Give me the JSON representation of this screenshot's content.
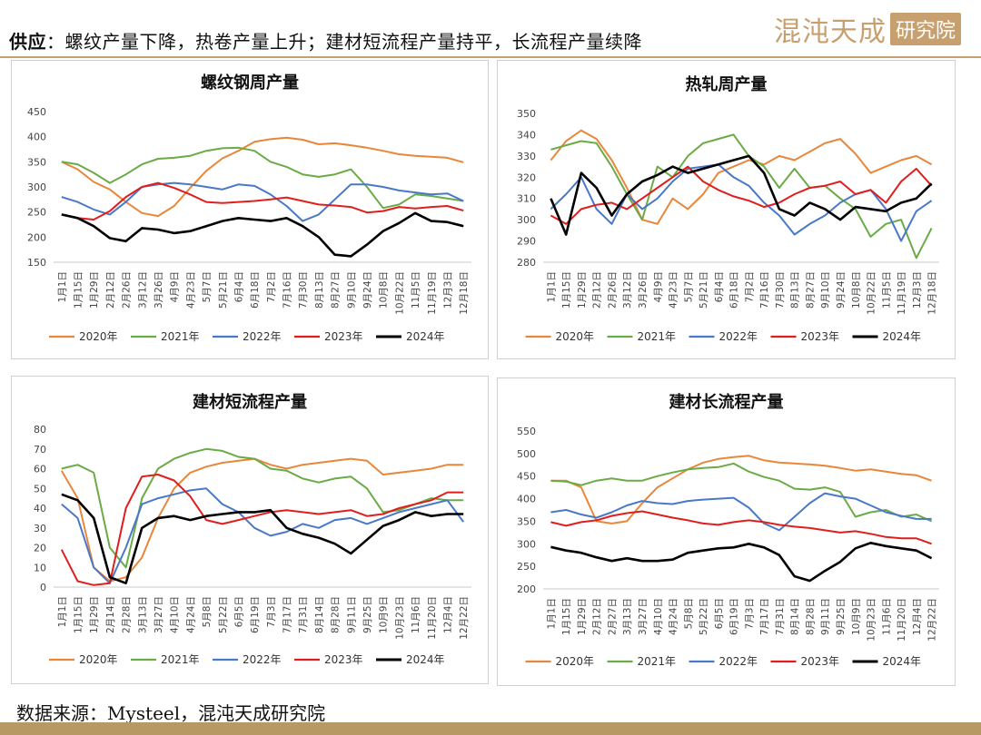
{
  "header": {
    "lead": "供应",
    "title": "：螺纹产量下降，热卷产量上升；建材短流程产量持平，长流程产量续降",
    "logo": "混沌天成",
    "logo_box": "研究院"
  },
  "footer": {
    "source": "数据来源：Mysteel，混沌天成研究院"
  },
  "legend_names": [
    "2020年",
    "2021年",
    "2022年",
    "2023年",
    "2024年"
  ],
  "colors": [
    "#e8873a",
    "#6aab46",
    "#4a78c8",
    "#e01e1e",
    "#000000"
  ],
  "chart_data": [
    {
      "type": "line",
      "title": "螺纹钢周产量",
      "ylim": [
        150,
        450
      ],
      "yticks": [
        150,
        200,
        250,
        300,
        350,
        400,
        450
      ],
      "x": [
        "1月1日",
        "1月15日",
        "1月29日",
        "2月12日",
        "2月26日",
        "3月12日",
        "3月26日",
        "4月9日",
        "4月23日",
        "5月7日",
        "5月21日",
        "6月4日",
        "6月18日",
        "7月2日",
        "7月16日",
        "7月30日",
        "8月13日",
        "8月27日",
        "9月10日",
        "9月24日",
        "10月8日",
        "10月22日",
        "11月5日",
        "11月19日",
        "12月3日",
        "12月18日"
      ],
      "series": [
        {
          "name": "2020年",
          "values": [
            350,
            335,
            310,
            295,
            270,
            248,
            242,
            262,
            298,
            332,
            357,
            372,
            390,
            395,
            398,
            394,
            385,
            387,
            383,
            378,
            372,
            365,
            362,
            360,
            358,
            349
          ]
        },
        {
          "name": "2021年",
          "values": [
            350,
            345,
            328,
            308,
            325,
            345,
            356,
            358,
            362,
            372,
            377,
            378,
            372,
            350,
            340,
            325,
            320,
            325,
            335,
            300,
            258,
            265,
            285,
            282,
            277,
            272
          ]
        },
        {
          "name": "2022年",
          "values": [
            280,
            270,
            255,
            245,
            270,
            300,
            305,
            308,
            305,
            300,
            295,
            305,
            302,
            285,
            262,
            232,
            245,
            275,
            305,
            305,
            300,
            293,
            289,
            285,
            287,
            272
          ]
        },
        {
          "name": "2023年",
          "values": [
            245,
            238,
            235,
            252,
            280,
            300,
            308,
            298,
            285,
            270,
            268,
            270,
            272,
            275,
            279,
            272,
            265,
            263,
            260,
            249,
            252,
            260,
            257,
            260,
            262,
            253
          ]
        },
        {
          "name": "2024年",
          "values": [
            245,
            238,
            222,
            198,
            192,
            218,
            215,
            208,
            212,
            222,
            232,
            238,
            235,
            232,
            238,
            222,
            200,
            165,
            162,
            185,
            212,
            228,
            248,
            232,
            230,
            222
          ]
        }
      ]
    },
    {
      "type": "line",
      "title": "热轧周产量",
      "ylim": [
        280,
        350
      ],
      "yticks": [
        280,
        290,
        300,
        310,
        320,
        330,
        340,
        350
      ],
      "x": [
        "1月1日",
        "1月15日",
        "1月29日",
        "2月12日",
        "2月26日",
        "3月12日",
        "3月26日",
        "4月9日",
        "4月23日",
        "5月7日",
        "5月21日",
        "6月4日",
        "6月18日",
        "7月2日",
        "7月16日",
        "7月30日",
        "8月13日",
        "8月27日",
        "9月10日",
        "9月24日",
        "10月8日",
        "10月22日",
        "11月5日",
        "11月19日",
        "12月3日",
        "12月18日"
      ],
      "series": [
        {
          "name": "2020年",
          "values": [
            328,
            337,
            342,
            338,
            328,
            315,
            300,
            298,
            310,
            305,
            312,
            322,
            325,
            328,
            326,
            330,
            328,
            332,
            336,
            338,
            331,
            322,
            325,
            328,
            330,
            326
          ]
        },
        {
          "name": "2021年",
          "values": [
            333,
            335,
            337,
            336,
            325,
            312,
            300,
            325,
            320,
            330,
            336,
            338,
            340,
            330,
            325,
            315,
            324,
            315,
            316,
            310,
            305,
            292,
            298,
            300,
            282,
            296
          ]
        },
        {
          "name": "2022年",
          "values": [
            305,
            312,
            320,
            305,
            298,
            312,
            305,
            310,
            318,
            324,
            325,
            326,
            320,
            316,
            308,
            302,
            293,
            298,
            302,
            308,
            312,
            314,
            305,
            290,
            304,
            309
          ]
        },
        {
          "name": "2023年",
          "values": [
            302,
            298,
            305,
            307,
            308,
            305,
            310,
            315,
            320,
            325,
            318,
            314,
            311,
            309,
            306,
            308,
            312,
            315,
            316,
            318,
            312,
            314,
            308,
            318,
            324,
            316
          ]
        },
        {
          "name": "2024年",
          "values": [
            310,
            293,
            322,
            315,
            302,
            312,
            318,
            321,
            325,
            322,
            324,
            326,
            328,
            330,
            322,
            305,
            302,
            308,
            305,
            300,
            306,
            305,
            304,
            308,
            310,
            317
          ]
        }
      ]
    },
    {
      "type": "line",
      "title": "建材短流程产量",
      "ylim": [
        0,
        80
      ],
      "yticks": [
        0,
        10,
        20,
        30,
        40,
        50,
        60,
        70,
        80
      ],
      "x": [
        "1月1日",
        "1月15日",
        "1月29日",
        "2月14日",
        "2月28日",
        "3月13日",
        "3月27日",
        "4月10日",
        "4月24日",
        "5月8日",
        "5月22日",
        "6月5日",
        "6月19日",
        "7月3日",
        "7月17日",
        "7月31日",
        "8月14日",
        "8月28日",
        "9月11日",
        "9月25日",
        "10月9日",
        "10月23日",
        "11月6日",
        "11月20日",
        "12月4日",
        "12月22日"
      ],
      "series": [
        {
          "name": "2020年",
          "values": [
            59,
            45,
            10,
            3,
            5,
            15,
            35,
            50,
            58,
            61,
            63,
            64,
            65,
            62,
            60,
            62,
            63,
            64,
            65,
            64,
            57,
            58,
            59,
            60,
            62,
            62
          ]
        },
        {
          "name": "2021年",
          "values": [
            60,
            62,
            58,
            20,
            10,
            45,
            60,
            65,
            68,
            70,
            69,
            66,
            65,
            60,
            59,
            55,
            53,
            55,
            56,
            50,
            38,
            39,
            42,
            45,
            44,
            44
          ]
        },
        {
          "name": "2022年",
          "values": [
            42,
            35,
            10,
            2,
            20,
            42,
            45,
            47,
            49,
            50,
            42,
            38,
            30,
            26,
            28,
            32,
            30,
            34,
            35,
            32,
            35,
            38,
            40,
            42,
            44,
            33
          ]
        },
        {
          "name": "2023年",
          "values": [
            19,
            3,
            1,
            2,
            40,
            56,
            57,
            54,
            46,
            34,
            32,
            34,
            36,
            38,
            39,
            38,
            37,
            38,
            39,
            36,
            37,
            40,
            42,
            44,
            48,
            48
          ]
        },
        {
          "name": "2024年",
          "values": [
            47,
            44,
            35,
            5,
            2,
            30,
            35,
            36,
            34,
            36,
            37,
            38,
            38,
            39,
            30,
            27,
            25,
            22,
            17,
            24,
            31,
            34,
            38,
            36,
            37,
            37
          ]
        }
      ]
    },
    {
      "type": "line",
      "title": "建材长流程产量",
      "ylim": [
        200,
        550
      ],
      "yticks": [
        200,
        250,
        300,
        350,
        400,
        450,
        500,
        550
      ],
      "x": [
        "1月1日",
        "1月15日",
        "1月29日",
        "2月12日",
        "2月27日",
        "3月13日",
        "3月27日",
        "4月10日",
        "4月24日",
        "5月8日",
        "5月22日",
        "6月5日",
        "6月19日",
        "7月3日",
        "7月17日",
        "7月31日",
        "8月14日",
        "8月28日",
        "9月11日",
        "9月25日",
        "10月9日",
        "10月23日",
        "11月6日",
        "11月20日",
        "12月4日",
        "12月22日"
      ],
      "series": [
        {
          "name": "2020年",
          "values": [
            440,
            440,
            425,
            350,
            345,
            350,
            390,
            425,
            445,
            465,
            480,
            488,
            492,
            495,
            485,
            480,
            478,
            476,
            473,
            468,
            462,
            465,
            460,
            455,
            452,
            440
          ]
        },
        {
          "name": "2021年",
          "values": [
            440,
            438,
            430,
            440,
            445,
            440,
            440,
            450,
            458,
            465,
            468,
            470,
            478,
            460,
            448,
            440,
            422,
            420,
            425,
            415,
            360,
            370,
            375,
            360,
            365,
            350
          ]
        },
        {
          "name": "2022年",
          "values": [
            370,
            375,
            365,
            358,
            370,
            385,
            395,
            390,
            388,
            395,
            398,
            400,
            402,
            380,
            345,
            330,
            360,
            390,
            412,
            405,
            400,
            385,
            370,
            362,
            355,
            355
          ]
        },
        {
          "name": "2023年",
          "values": [
            348,
            340,
            348,
            352,
            362,
            368,
            372,
            365,
            358,
            352,
            345,
            342,
            348,
            352,
            348,
            342,
            338,
            335,
            330,
            325,
            328,
            322,
            315,
            312,
            312,
            300
          ]
        },
        {
          "name": "2024年",
          "values": [
            293,
            285,
            280,
            270,
            262,
            268,
            262,
            262,
            265,
            280,
            285,
            290,
            292,
            300,
            292,
            275,
            228,
            218,
            240,
            260,
            290,
            302,
            295,
            290,
            285,
            268
          ]
        }
      ]
    }
  ]
}
